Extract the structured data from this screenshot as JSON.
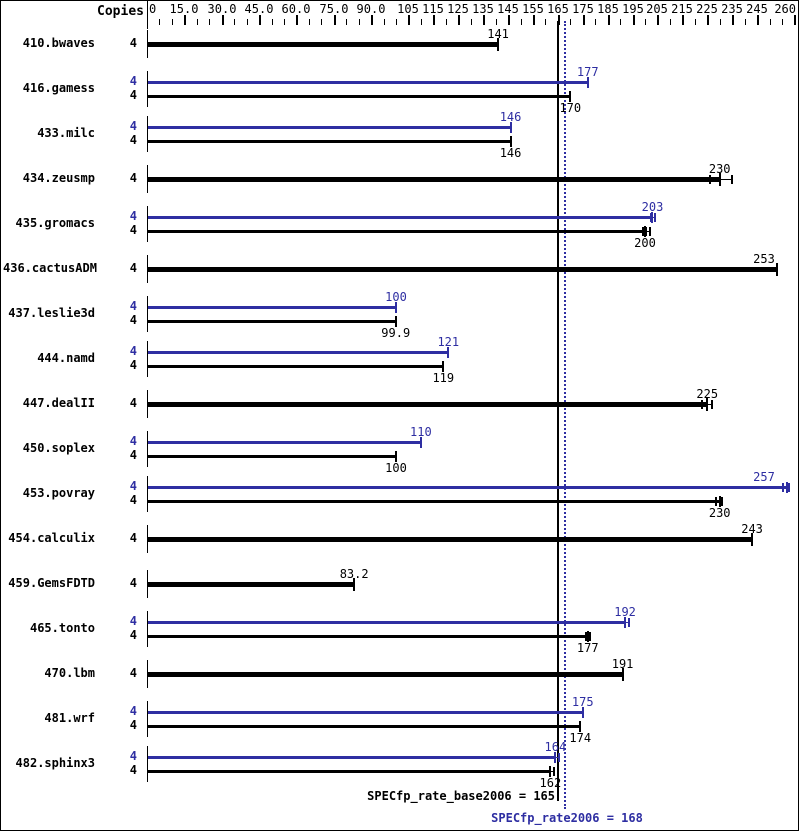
{
  "header": {
    "copies_label": "Copies"
  },
  "colors": {
    "base": "#000000",
    "peak": "#2e2ea2",
    "background": "#ffffff"
  },
  "axis": {
    "max": 260,
    "minor_tick_step": 5,
    "major_labels": [
      {
        "v": 0,
        "t": "0"
      },
      {
        "v": 15,
        "t": "15.0"
      },
      {
        "v": 30,
        "t": "30.0"
      },
      {
        "v": 45,
        "t": "45.0"
      },
      {
        "v": 60,
        "t": "60.0"
      },
      {
        "v": 75,
        "t": "75.0"
      },
      {
        "v": 90,
        "t": "90.0"
      },
      {
        "v": 105,
        "t": "105"
      },
      {
        "v": 115,
        "t": "115"
      },
      {
        "v": 125,
        "t": "125"
      },
      {
        "v": 135,
        "t": "135"
      },
      {
        "v": 145,
        "t": "145"
      },
      {
        "v": 155,
        "t": "155"
      },
      {
        "v": 165,
        "t": "165"
      },
      {
        "v": 175,
        "t": "175"
      },
      {
        "v": 185,
        "t": "185"
      },
      {
        "v": 195,
        "t": "195"
      },
      {
        "v": 205,
        "t": "205"
      },
      {
        "v": 215,
        "t": "215"
      },
      {
        "v": 225,
        "t": "225"
      },
      {
        "v": 235,
        "t": "235"
      },
      {
        "v": 245,
        "t": "245"
      },
      {
        "v": 260,
        "t": "260"
      }
    ]
  },
  "summary": {
    "base_text": "SPECfp_rate_base2006 = 165",
    "base_value": 165,
    "peak_text": "SPECfp_rate2006 = 168",
    "peak_value": 168
  },
  "chart_data": {
    "type": "bar",
    "orientation": "horizontal",
    "xlim": [
      0,
      260
    ],
    "legend": "black = base, blue = peak; single bold bar = base and peak equal",
    "benchmarks": [
      {
        "name": "410.bwaves",
        "bars": [
          {
            "kind": "single",
            "copies": 4,
            "value": 141,
            "label": "141",
            "runs": []
          }
        ]
      },
      {
        "name": "416.gamess",
        "bars": [
          {
            "kind": "peak",
            "copies": 4,
            "value": 177,
            "label": "177",
            "runs": []
          },
          {
            "kind": "base",
            "copies": 4,
            "value": 170,
            "label": "170",
            "runs": []
          }
        ]
      },
      {
        "name": "433.milc",
        "bars": [
          {
            "kind": "peak",
            "copies": 4,
            "value": 146,
            "label": "146",
            "runs": []
          },
          {
            "kind": "base",
            "copies": 4,
            "value": 146,
            "label": "146",
            "runs": []
          }
        ]
      },
      {
        "name": "434.zeusmp",
        "bars": [
          {
            "kind": "single",
            "copies": 4,
            "value": 230,
            "label": "230",
            "runs": [
              226,
              230,
              235
            ]
          }
        ]
      },
      {
        "name": "435.gromacs",
        "bars": [
          {
            "kind": "peak",
            "copies": 4,
            "value": 203,
            "label": "203",
            "runs": [
              202.5,
              204
            ]
          },
          {
            "kind": "base",
            "copies": 4,
            "value": 200,
            "label": "200",
            "runs": [
              199,
              200.5,
              202
            ]
          }
        ]
      },
      {
        "name": "436.cactusADM",
        "bars": [
          {
            "kind": "single",
            "copies": 4,
            "value": 253,
            "label": "253",
            "runs": []
          }
        ]
      },
      {
        "name": "437.leslie3d",
        "bars": [
          {
            "kind": "peak",
            "copies": 4,
            "value": 100,
            "label": "100",
            "runs": []
          },
          {
            "kind": "base",
            "copies": 4,
            "value": 99.9,
            "label": "99.9",
            "runs": []
          }
        ]
      },
      {
        "name": "444.namd",
        "bars": [
          {
            "kind": "peak",
            "copies": 4,
            "value": 121,
            "label": "121",
            "runs": []
          },
          {
            "kind": "base",
            "copies": 4,
            "value": 119,
            "label": "119",
            "runs": []
          }
        ]
      },
      {
        "name": "447.dealII",
        "bars": [
          {
            "kind": "single",
            "copies": 4,
            "value": 225,
            "label": "225",
            "runs": [
              223,
              225,
              227
            ]
          }
        ]
      },
      {
        "name": "450.soplex",
        "bars": [
          {
            "kind": "peak",
            "copies": 4,
            "value": 110,
            "label": "110",
            "runs": []
          },
          {
            "kind": "base",
            "copies": 4,
            "value": 100,
            "label": "100",
            "runs": []
          }
        ]
      },
      {
        "name": "453.povray",
        "bars": [
          {
            "kind": "peak",
            "copies": 4,
            "value": 257,
            "label": "257",
            "runs": [
              255.5,
              257,
              258
            ]
          },
          {
            "kind": "base",
            "copies": 4,
            "value": 230,
            "label": "230",
            "runs": [
              228.5,
              230,
              231
            ]
          }
        ]
      },
      {
        "name": "454.calculix",
        "bars": [
          {
            "kind": "single",
            "copies": 4,
            "value": 243,
            "label": "243",
            "runs": []
          }
        ]
      },
      {
        "name": "459.GemsFDTD",
        "bars": [
          {
            "kind": "single",
            "copies": 4,
            "value": 83.2,
            "label": "83.2",
            "runs": []
          }
        ]
      },
      {
        "name": "465.tonto",
        "bars": [
          {
            "kind": "peak",
            "copies": 4,
            "value": 192,
            "label": "192",
            "runs": [
              192,
              193.5
            ]
          },
          {
            "kind": "base",
            "copies": 4,
            "value": 177,
            "label": "177",
            "runs": [
              176.5,
              178
            ]
          }
        ]
      },
      {
        "name": "470.lbm",
        "bars": [
          {
            "kind": "single",
            "copies": 4,
            "value": 191,
            "label": "191",
            "runs": []
          }
        ]
      },
      {
        "name": "481.wrf",
        "bars": [
          {
            "kind": "peak",
            "copies": 4,
            "value": 175,
            "label": "175",
            "runs": []
          },
          {
            "kind": "base",
            "copies": 4,
            "value": 174,
            "label": "174",
            "runs": []
          }
        ]
      },
      {
        "name": "482.sphinx3",
        "bars": [
          {
            "kind": "peak",
            "copies": 4,
            "value": 164,
            "label": "164",
            "runs": [
              164,
              165.5
            ]
          },
          {
            "kind": "base",
            "copies": 4,
            "value": 162,
            "label": "162",
            "runs": [
              162,
              163.5
            ]
          }
        ]
      }
    ]
  }
}
